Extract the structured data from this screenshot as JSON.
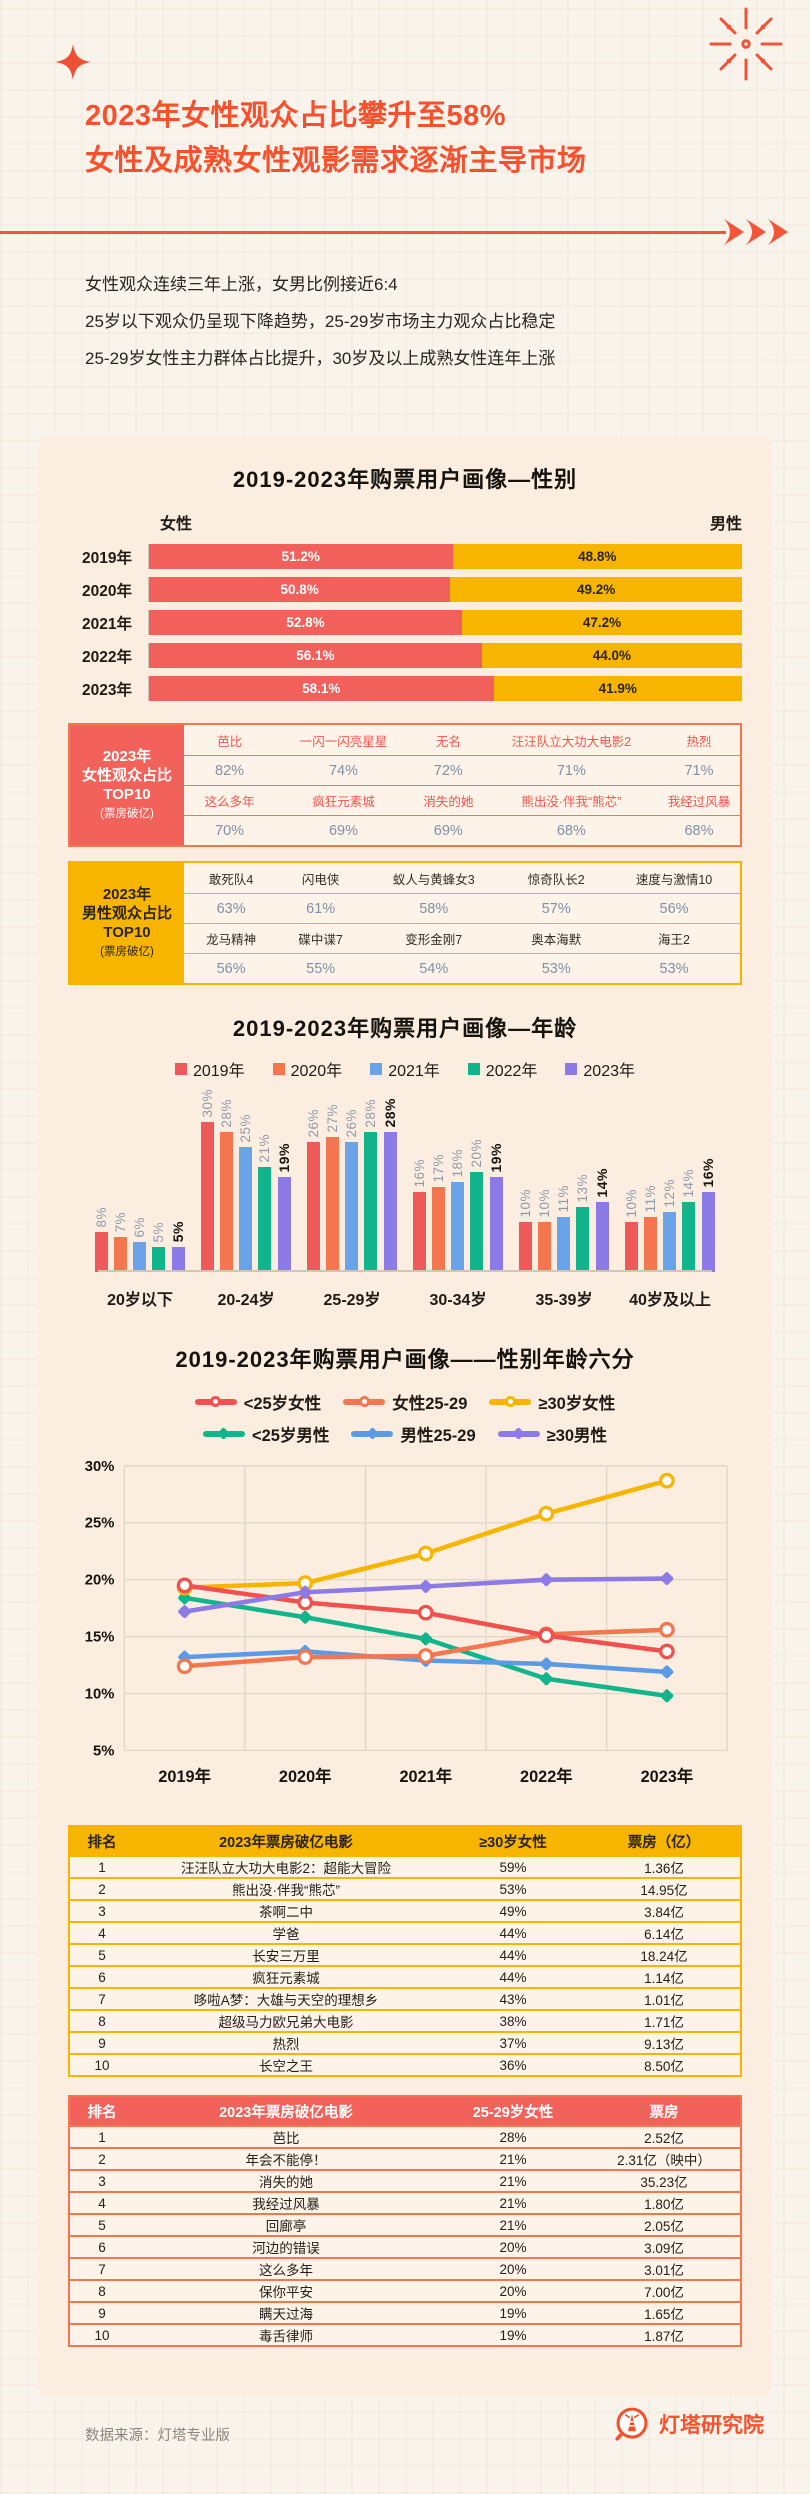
{
  "header": {
    "title_line1": "2023年女性观众占比攀升至58%",
    "title_line2": "女性及成熟女性观影需求逐渐主导市场"
  },
  "intro_lines": [
    "女性观众连续三年上涨，女男比例接近6:4",
    "25岁以下观众仍呈现下降趋势，25-29岁市场主力观众占比稳定",
    "25-29岁女性主力群体占比提升，30岁及以上成熟女性连年上涨"
  ],
  "chart_data": [
    {
      "id": "gender-by-year",
      "type": "bar",
      "subtype": "horizontal-stacked",
      "title": "2019-2023年购票用户画像—性别",
      "left_label": "女性",
      "right_label": "男性",
      "categories": [
        "2019年",
        "2020年",
        "2021年",
        "2022年",
        "2023年"
      ],
      "series": [
        {
          "name": "女性",
          "color": "#f2605c",
          "values": [
            51.2,
            50.8,
            52.8,
            56.1,
            58.1
          ],
          "labels": [
            "51.2%",
            "50.8%",
            "52.8%",
            "56.1%",
            "58.1%"
          ]
        },
        {
          "name": "男性",
          "color": "#f7b500",
          "values": [
            48.8,
            49.2,
            47.2,
            44.0,
            41.9
          ],
          "labels": [
            "48.8%",
            "49.2%",
            "47.2%",
            "44.0%",
            "41.9%"
          ]
        }
      ]
    },
    {
      "id": "female-top10",
      "type": "table",
      "header_lines": [
        "2023年",
        "女性观众占比",
        "TOP10",
        "(票房破亿)"
      ],
      "header_bg": "#f2615a",
      "header_text": "#ffffff",
      "border_color": "#f4764f",
      "name_color": "#f4544c",
      "value_color": "#7e90a8",
      "col_template": "1fr 1.5fr 0.8fr 1.9fr 0.9fr",
      "pairs": [
        {
          "names": [
            "芭比",
            "一闪一闪亮星星",
            "无名",
            "汪汪队立大功大电影2",
            "热烈"
          ],
          "values": [
            "82%",
            "74%",
            "72%",
            "71%",
            "71%"
          ]
        },
        {
          "names": [
            "这么多年",
            "疯狂元素城",
            "消失的她",
            "熊出没·伴我“熊芯”",
            "我经过风暴"
          ],
          "values": [
            "70%",
            "69%",
            "69%",
            "68%",
            "68%"
          ]
        }
      ]
    },
    {
      "id": "male-top10",
      "type": "table",
      "header_lines": [
        "2023年",
        "男性观众占比",
        "TOP10",
        "(票房破亿)"
      ],
      "header_bg": "#f7b500",
      "header_text": "#2a2419",
      "border_color": "#f7b500",
      "name_color": "#332e27",
      "value_color": "#7e90a8",
      "col_template": "1fr 0.9fr 1.5fr 1.1fr 1.4fr",
      "pairs": [
        {
          "names": [
            "敢死队4",
            "闪电侠",
            "蚁人与黄蜂女3",
            "惊奇队长2",
            "速度与激情10"
          ],
          "values": [
            "63%",
            "61%",
            "58%",
            "57%",
            "56%"
          ]
        },
        {
          "names": [
            "龙马精神",
            "碟中谍7",
            "变形金刚7",
            "奥本海默",
            "海王2"
          ],
          "values": [
            "56%",
            "55%",
            "54%",
            "53%",
            "53%"
          ]
        }
      ]
    },
    {
      "id": "age-by-year",
      "type": "bar",
      "subtype": "grouped-vertical",
      "title": "2019-2023年购票用户画像—年龄",
      "categories": [
        "20岁以下",
        "20-24岁",
        "25-29岁",
        "30-34岁",
        "35-39岁",
        "40岁及以上"
      ],
      "ylim": [
        0,
        30
      ],
      "value_suffix": "%",
      "series": [
        {
          "name": "2019年",
          "color": "#ee5a5a",
          "values": [
            8,
            30,
            26,
            16,
            10,
            10
          ]
        },
        {
          "name": "2020年",
          "color": "#f4764f",
          "values": [
            7,
            28,
            27,
            17,
            10,
            11
          ]
        },
        {
          "name": "2021年",
          "color": "#6ba3e8",
          "values": [
            6,
            25,
            26,
            18,
            11,
            12
          ]
        },
        {
          "name": "2022年",
          "color": "#12b48c",
          "values": [
            5,
            21,
            28,
            20,
            13,
            14
          ]
        },
        {
          "name": "2023年",
          "color": "#8c7ae6",
          "values": [
            5,
            19,
            28,
            19,
            14,
            16
          ]
        }
      ]
    },
    {
      "id": "gender-age-six",
      "type": "line",
      "title": "2019-2023年购票用户画像——性别年龄六分",
      "x": [
        "2019年",
        "2020年",
        "2021年",
        "2022年",
        "2023年"
      ],
      "ylim": [
        5,
        30
      ],
      "ytick_step": 5,
      "grid": true,
      "series": [
        {
          "name": "<25岁男性",
          "color": "#12b48c",
          "marker": "diamond",
          "values": [
            18.4,
            16.7,
            14.8,
            11.3,
            9.8
          ]
        },
        {
          "name": "男性25-29",
          "color": "#5b9be6",
          "marker": "diamond",
          "values": [
            13.2,
            13.7,
            12.9,
            12.6,
            11.9
          ]
        },
        {
          "name": "≥30岁女性",
          "color": "#f7b500",
          "marker": "open-circle",
          "values": [
            19.3,
            19.7,
            22.3,
            25.8,
            28.7
          ]
        },
        {
          "name": "女性25-29",
          "color": "#f4764f",
          "marker": "open-circle",
          "values": [
            12.4,
            13.2,
            13.3,
            15.2,
            15.6
          ]
        },
        {
          "name": "<25岁女性",
          "color": "#f0504e",
          "marker": "open-circle",
          "values": [
            19.5,
            18.0,
            17.1,
            15.1,
            13.7
          ]
        },
        {
          "name": "≥30男性",
          "color": "#8c7ae6",
          "marker": "diamond",
          "values": [
            17.2,
            18.9,
            19.4,
            20.0,
            20.1
          ]
        }
      ],
      "legend_rows": [
        [
          {
            "name": "<25岁女性",
            "color": "#f0504e",
            "marker": "open-circle"
          },
          {
            "name": "女性25-29",
            "color": "#f4764f",
            "marker": "open-circle"
          },
          {
            "name": "≥30岁女性",
            "color": "#f7b500",
            "marker": "open-circle"
          }
        ],
        [
          {
            "name": "<25岁男性",
            "color": "#12b48c",
            "marker": "diamond"
          },
          {
            "name": "男性25-29",
            "color": "#5b9be6",
            "marker": "diamond"
          },
          {
            "name": "≥30男性",
            "color": "#8c7ae6",
            "marker": "diamond"
          }
        ]
      ]
    },
    {
      "id": "over30-female-movies",
      "type": "table",
      "columns": [
        "排名",
        "2023年票房破亿电影",
        "≥30岁女性",
        "票房（亿）"
      ],
      "header_bg": "#f7b500",
      "header_text": "#2a2419",
      "border_color": "#f7b500",
      "rows": [
        [
          "1",
          "汪汪队立大功大电影2：超能大冒险",
          "59%",
          "1.36亿"
        ],
        [
          "2",
          "熊出没·伴我“熊芯”",
          "53%",
          "14.95亿"
        ],
        [
          "3",
          "茶啊二中",
          "49%",
          "3.84亿"
        ],
        [
          "4",
          "学爸",
          "44%",
          "6.14亿"
        ],
        [
          "5",
          "长安三万里",
          "44%",
          "18.24亿"
        ],
        [
          "6",
          "疯狂元素城",
          "44%",
          "1.14亿"
        ],
        [
          "7",
          "哆啦A梦：大雄与天空的理想乡",
          "43%",
          "1.01亿"
        ],
        [
          "8",
          "超级马力欧兄弟大电影",
          "38%",
          "1.71亿"
        ],
        [
          "9",
          "热烈",
          "37%",
          "9.13亿"
        ],
        [
          "10",
          "长空之王",
          "36%",
          "8.50亿"
        ]
      ]
    },
    {
      "id": "age25-29-female-movies",
      "type": "table",
      "columns": [
        "排名",
        "2023年票房破亿电影",
        "25-29岁女性",
        "票房"
      ],
      "header_bg": "#f2615a",
      "header_text": "#ffffff",
      "border_color": "#f4764f",
      "rows": [
        [
          "1",
          "芭比",
          "28%",
          "2.52亿"
        ],
        [
          "2",
          "年会不能停！",
          "21%",
          "2.31亿（映中）"
        ],
        [
          "3",
          "消失的她",
          "21%",
          "35.23亿"
        ],
        [
          "4",
          "我经过风暴",
          "21%",
          "1.80亿"
        ],
        [
          "5",
          "回廊亭",
          "21%",
          "2.05亿"
        ],
        [
          "6",
          "河边的错误",
          "20%",
          "3.09亿"
        ],
        [
          "7",
          "这么多年",
          "20%",
          "3.01亿"
        ],
        [
          "8",
          "保你平安",
          "20%",
          "7.00亿"
        ],
        [
          "9",
          "瞒天过海",
          "19%",
          "1.65亿"
        ],
        [
          "10",
          "毒舌律师",
          "19%",
          "1.87亿"
        ]
      ]
    }
  ],
  "footer": {
    "source": "数据来源：灯塔专业版",
    "brand": "灯塔研究院"
  }
}
